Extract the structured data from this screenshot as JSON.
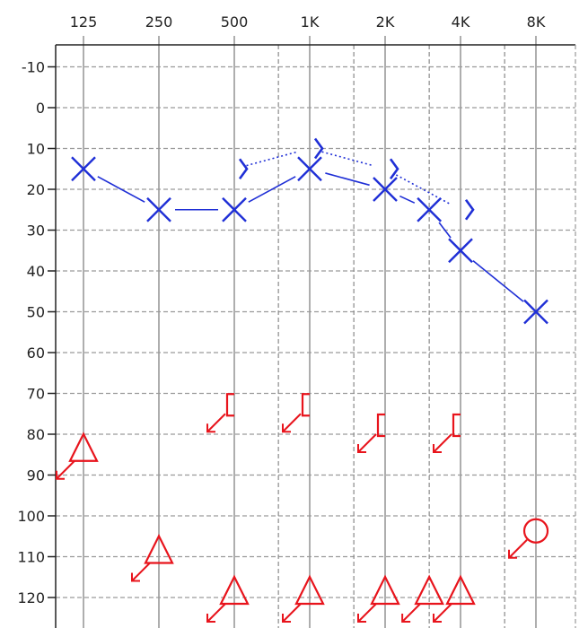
{
  "chart_data": {
    "type": "audiogram",
    "x_ticks": [
      "125",
      "250",
      "500",
      "1K",
      "2K",
      "4K",
      "8K"
    ],
    "x_octave_values": [
      125,
      250,
      500,
      1000,
      2000,
      4000,
      8000
    ],
    "x_interoctave_values": [
      750,
      1500,
      3000,
      6000
    ],
    "y_ticks": [
      -10,
      0,
      10,
      20,
      30,
      40,
      50,
      60,
      70,
      80,
      90,
      100,
      110,
      120
    ],
    "ylim": [
      -15,
      125
    ],
    "y_inverted": true,
    "grid": true,
    "colors": {
      "left_ear": "#1f2fd6",
      "right_ear": "#e8141c",
      "grid_major": "#9a9a9a",
      "grid_minor": "#8a8a8a",
      "frame": "#222222"
    },
    "series": [
      {
        "marker": "x",
        "color": "#1f2fd6",
        "line": "solid",
        "points": [
          {
            "freq": 125,
            "db": 15
          },
          {
            "freq": 250,
            "db": 25
          },
          {
            "freq": 500,
            "db": 25
          },
          {
            "freq": 1000,
            "db": 15
          },
          {
            "freq": 2000,
            "db": 20
          },
          {
            "freq": 3000,
            "db": 25
          },
          {
            "freq": 4000,
            "db": 35
          },
          {
            "freq": 8000,
            "db": 50
          }
        ]
      },
      {
        "marker": "bracket-right",
        "color": "#1f2fd6",
        "line": "dotted",
        "points": [
          {
            "freq": 500,
            "db": 15
          },
          {
            "freq": 1000,
            "db": 10
          },
          {
            "freq": 2000,
            "db": 15
          },
          {
            "freq": 4000,
            "db": 25
          }
        ]
      },
      {
        "marker": "bracket-left-no-response",
        "color": "#e8141c",
        "line": "none",
        "points": [
          {
            "freq": 500,
            "db": 75
          },
          {
            "freq": 1000,
            "db": 75
          },
          {
            "freq": 2000,
            "db": 80
          },
          {
            "freq": 4000,
            "db": 80
          }
        ]
      },
      {
        "marker": "triangle-no-response",
        "color": "#e8141c",
        "line": "none",
        "points": [
          {
            "freq": 125,
            "db": 85
          },
          {
            "freq": 250,
            "db": 110
          },
          {
            "freq": 500,
            "db": 120
          },
          {
            "freq": 1000,
            "db": 120
          },
          {
            "freq": 2000,
            "db": 120
          },
          {
            "freq": 3000,
            "db": 120
          },
          {
            "freq": 4000,
            "db": 120
          }
        ]
      },
      {
        "marker": "circle-no-response",
        "color": "#e8141c",
        "line": "none",
        "points": [
          {
            "freq": 8000,
            "db": 105
          }
        ]
      }
    ]
  }
}
